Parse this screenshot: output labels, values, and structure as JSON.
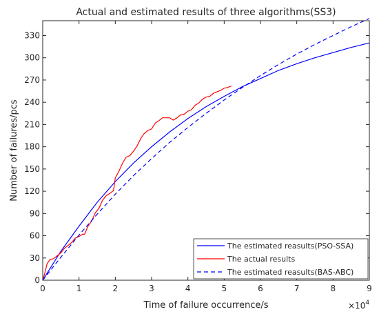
{
  "chart_data": {
    "type": "line",
    "title": "Actual and estimated results of three algorithms(SS3)",
    "xlabel": "Time of failure occurrence/s",
    "ylabel": "Number of failures/pcs",
    "x_exponent_label": "×10",
    "x_exponent_power": "4",
    "xlim": [
      0,
      90000
    ],
    "ylim": [
      0,
      350
    ],
    "x_ticks": [
      0,
      10000,
      20000,
      30000,
      40000,
      50000,
      60000,
      70000,
      80000,
      90000
    ],
    "x_tick_labels": [
      "0",
      "1",
      "2",
      "3",
      "4",
      "5",
      "6",
      "7",
      "8",
      "9"
    ],
    "y_ticks": [
      0,
      30,
      60,
      90,
      120,
      150,
      180,
      210,
      240,
      270,
      300,
      330
    ],
    "y_tick_labels": [
      "0",
      "30",
      "60",
      "90",
      "120",
      "150",
      "180",
      "210",
      "240",
      "270",
      "300",
      "330"
    ],
    "grid": false,
    "legend_position": "bottom-right",
    "series": [
      {
        "name": "The estimated reasults(PSO-SSA)",
        "color": "#0000ff",
        "style": "solid",
        "x": [
          0,
          5000,
          10000,
          15000,
          20000,
          25000,
          30000,
          35000,
          40000,
          45000,
          50000,
          55000,
          60000,
          65000,
          70000,
          75000,
          80000,
          85000,
          90000
        ],
        "y": [
          0,
          39,
          73,
          105,
          133,
          158,
          180,
          200,
          218,
          234,
          248,
          261,
          272,
          283,
          292,
          300,
          307,
          314,
          320
        ]
      },
      {
        "name": "The actual results",
        "color": "#ff0000",
        "style": "solid",
        "x": [
          0,
          500,
          1200,
          2000,
          3000,
          4000,
          5000,
          6000,
          7000,
          8000,
          9000,
          10000,
          11000,
          11500,
          12500,
          13500,
          14500,
          15500,
          16500,
          17500,
          18500,
          19500,
          20000,
          21000,
          22000,
          23000,
          24000,
          25000,
          26000,
          27000,
          28000,
          29000,
          30000,
          31000,
          32000,
          33000,
          34000,
          35000,
          36000,
          37000,
          38000,
          39000,
          40000,
          41000,
          42000,
          43000,
          44000,
          45000,
          46000,
          47000,
          48000,
          49000,
          50000,
          51000,
          52000
        ],
        "y": [
          0,
          8,
          22,
          28,
          29,
          33,
          37,
          43,
          47,
          51,
          57,
          59,
          62,
          62,
          73,
          80,
          91,
          97,
          108,
          114,
          117,
          121,
          138,
          147,
          158,
          166,
          168,
          174,
          181,
          191,
          198,
          202,
          204,
          212,
          215,
          219,
          219,
          219,
          216,
          219,
          223,
          224,
          228,
          230,
          236,
          239,
          244,
          247,
          248,
          252,
          254,
          256,
          259,
          260,
          262
        ]
      },
      {
        "name": "The estimated reasults(BAS-ABC)",
        "color": "#0000ff",
        "style": "dashed",
        "x": [
          0,
          5000,
          10000,
          15000,
          20000,
          25000,
          30000,
          35000,
          40000,
          45000,
          50000,
          55000,
          60000,
          65000,
          70000,
          75000,
          80000,
          85000,
          90000
        ],
        "y": [
          0,
          31,
          61,
          89,
          116,
          141,
          164,
          186,
          206,
          225,
          243,
          260,
          276,
          291,
          305,
          318,
          330,
          342,
          353
        ]
      }
    ]
  }
}
